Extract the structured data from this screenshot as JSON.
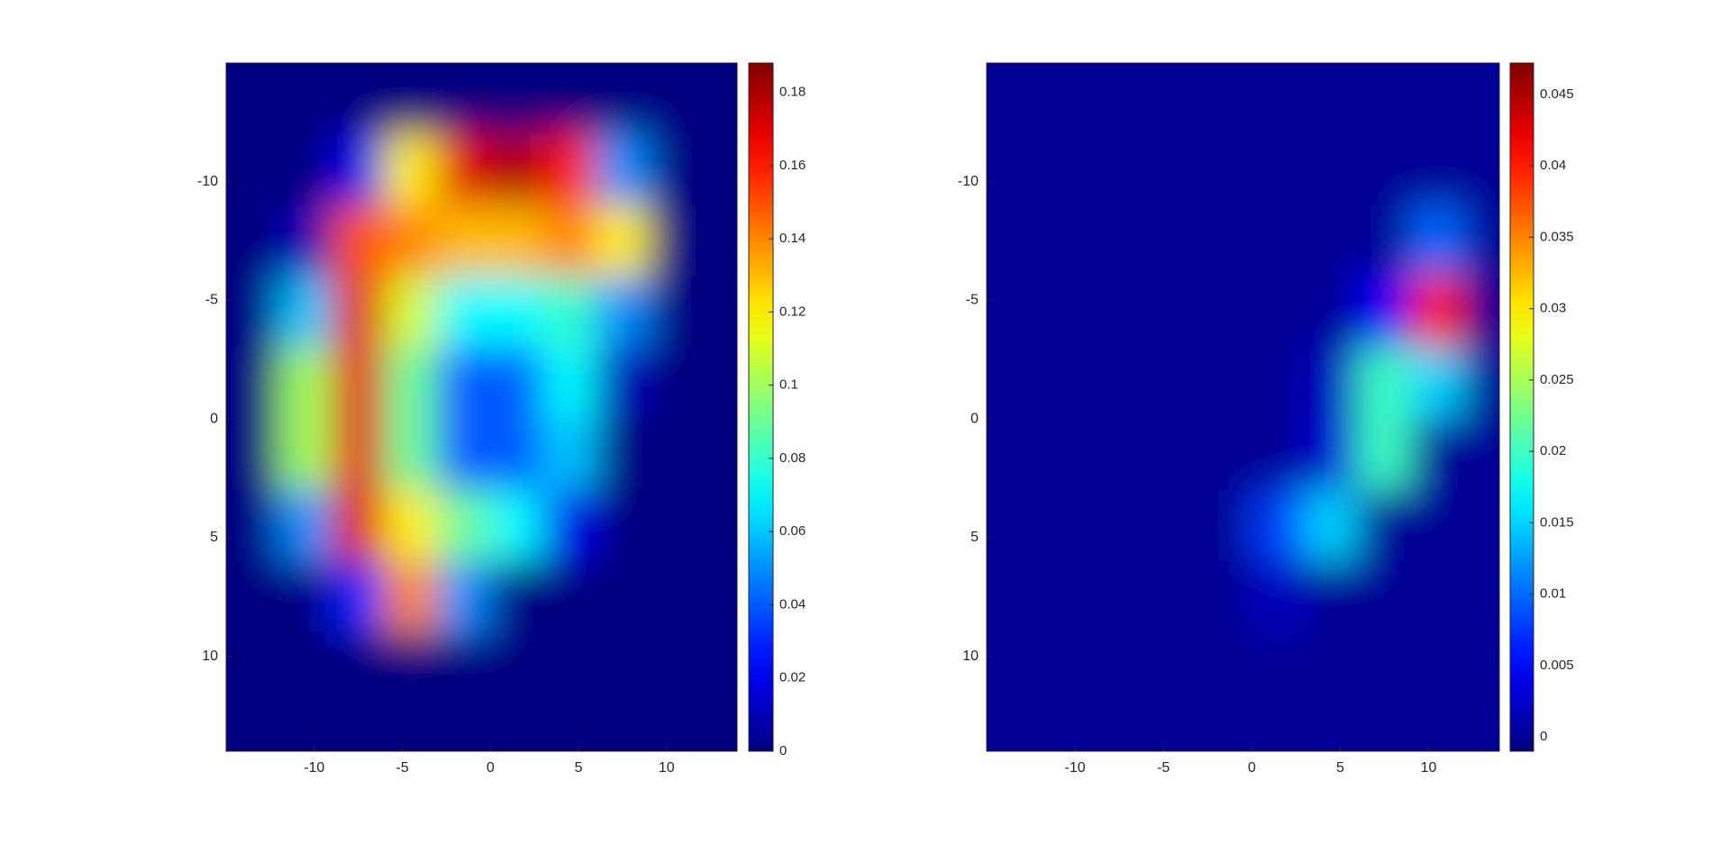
{
  "chart_data": [
    {
      "type": "heatmap",
      "colormap": "jet",
      "y_reversed": true,
      "x": [
        -13.5,
        -10.5,
        -7.5,
        -4.5,
        -1.5,
        1.5,
        4.5,
        7.5,
        10.5,
        13.5
      ],
      "y": [
        -13.5,
        -10.5,
        -7.5,
        -4.5,
        -1.5,
        1.5,
        4.5,
        7.5,
        10.5,
        13.5
      ],
      "z": [
        [
          0,
          0,
          0,
          0,
          0,
          0,
          0,
          0,
          0,
          0
        ],
        [
          0,
          0,
          0.02,
          0.12,
          0.17,
          0.18,
          0.16,
          0.05,
          0,
          0
        ],
        [
          0,
          0.01,
          0.15,
          0.14,
          0.13,
          0.13,
          0.14,
          0.12,
          0,
          0
        ],
        [
          0,
          0.06,
          0.17,
          0.11,
          0.07,
          0.07,
          0.08,
          0.05,
          0,
          0
        ],
        [
          0,
          0.1,
          0.17,
          0.09,
          0.04,
          0.04,
          0.07,
          0.01,
          0,
          0
        ],
        [
          0,
          0.1,
          0.17,
          0.09,
          0.04,
          0.04,
          0.06,
          0,
          0,
          0
        ],
        [
          0,
          0.05,
          0.17,
          0.12,
          0.09,
          0.07,
          0.02,
          0,
          0,
          0
        ],
        [
          0,
          0,
          0.03,
          0.14,
          0.05,
          0,
          0,
          0,
          0,
          0
        ],
        [
          0,
          0,
          0,
          0,
          0,
          0,
          0,
          0,
          0,
          0
        ],
        [
          0,
          0,
          0,
          0,
          0,
          0,
          0,
          0,
          0,
          0
        ]
      ],
      "xlim": [
        -15,
        14
      ],
      "ylim": [
        -15,
        14
      ],
      "xticks": [
        -10,
        -5,
        0,
        5,
        10
      ],
      "yticks": [
        -10,
        -5,
        0,
        5,
        10
      ],
      "clim": [
        0,
        0.188
      ],
      "cticks": [
        0,
        0.02,
        0.04,
        0.06,
        0.08,
        0.1,
        0.12,
        0.14,
        0.16,
        0.18
      ]
    },
    {
      "type": "heatmap",
      "colormap": "jet",
      "y_reversed": true,
      "x": [
        -13.5,
        -10.5,
        -7.5,
        -4.5,
        -1.5,
        1.5,
        4.5,
        7.5,
        10.5,
        13.5
      ],
      "y": [
        -13.5,
        -10.5,
        -7.5,
        -4.5,
        -1.5,
        1.5,
        4.5,
        7.5,
        10.5,
        13.5
      ],
      "z": [
        [
          0,
          0,
          0,
          0,
          0,
          0,
          0,
          0,
          0,
          0
        ],
        [
          0,
          0,
          0,
          0,
          0,
          0,
          0,
          0,
          0,
          0
        ],
        [
          0,
          0,
          0,
          0,
          0,
          0,
          0,
          0,
          0.01,
          0
        ],
        [
          0,
          0,
          0,
          0,
          0,
          0,
          0,
          0.005,
          0.04,
          0
        ],
        [
          0,
          0,
          0,
          0,
          0,
          0,
          0.002,
          0.02,
          0.015,
          0
        ],
        [
          0,
          0,
          0,
          0,
          0,
          0,
          0.003,
          0.02,
          0,
          0
        ],
        [
          0,
          0,
          0,
          0,
          0,
          0.008,
          0.015,
          0,
          0,
          0
        ],
        [
          0,
          0,
          0,
          0,
          0,
          0.002,
          0,
          0,
          0,
          0
        ],
        [
          0,
          0,
          0,
          0,
          0,
          0,
          0,
          0,
          0,
          0
        ],
        [
          0,
          0,
          0,
          0,
          0,
          0,
          0,
          0,
          0,
          0
        ]
      ],
      "xlim": [
        -15,
        14
      ],
      "ylim": [
        -15,
        14
      ],
      "xticks": [
        -10,
        -5,
        0,
        5,
        10
      ],
      "yticks": [
        -10,
        -5,
        0,
        5,
        10
      ],
      "clim": [
        -0.001,
        0.0472
      ],
      "cticks": [
        0,
        0.005,
        0.01,
        0.015,
        0.02,
        0.025,
        0.03,
        0.035,
        0.04,
        0.045
      ]
    }
  ]
}
